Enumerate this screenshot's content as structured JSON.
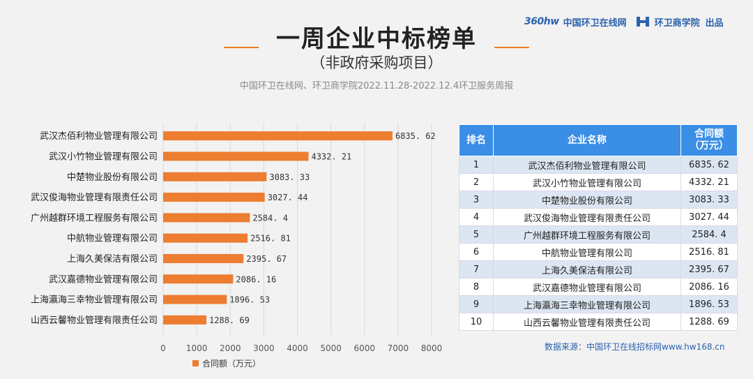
{
  "brand": {
    "logo": "360hw",
    "site": "中国环卫在线网",
    "academy": "环卫商学院",
    "publish": "出品"
  },
  "header": {
    "title": "一周企业中标榜单",
    "subtitle": "（非政府采购项目）",
    "source": "中国环卫在线网、环卫商学院2022.11.28-2022.12.4环卫服务周报"
  },
  "colors": {
    "bar": "#ed7d31",
    "table_header": "#3a8ee6",
    "row_odd": "#dce6f3"
  },
  "chart_data": {
    "type": "bar",
    "orientation": "horizontal",
    "categories": [
      "武汉杰佰利物业管理有限公司",
      "武汉小竹物业管理有限公司",
      "中楚物业股份有限公司",
      "武汉俊海物业管理有限责任公司",
      "广州越群环境工程服务有限公司",
      "中航物业管理有限公司",
      "上海久美保洁有限公司",
      "武汉嘉德物业管理有限公司",
      "上海瀛海三幸物业管理有限公司",
      "山西云馨物业管理有限责任公司"
    ],
    "values": [
      6835.62,
      4332.21,
      3083.33,
      3027.44,
      2584.4,
      2516.81,
      2395.67,
      2086.16,
      1896.53,
      1288.69
    ],
    "value_labels": [
      "6835. 62",
      "4332. 21",
      "3083. 33",
      "3027. 44",
      "2584. 4",
      "2516. 81",
      "2395. 67",
      "2086. 16",
      "1896. 53",
      "1288. 69"
    ],
    "xlim": [
      0,
      8000
    ],
    "ticks": [
      0,
      1000,
      2000,
      3000,
      4000,
      5000,
      6000,
      7000,
      8000
    ],
    "series_name": "合同额（万元）",
    "grid": true,
    "legend": "bottom"
  },
  "table": {
    "headers": [
      "排名",
      "企业名称",
      "合同额\n（万元）"
    ],
    "rows": [
      [
        "1",
        "武汉杰佰利物业管理有限公司",
        "6835. 62"
      ],
      [
        "2",
        "武汉小竹物业管理有限公司",
        "4332. 21"
      ],
      [
        "3",
        "中楚物业股份有限公司",
        "3083. 33"
      ],
      [
        "4",
        "武汉俊海物业管理有限责任公司",
        "3027. 44"
      ],
      [
        "5",
        "广州越群环境工程服务有限公司",
        "2584. 4"
      ],
      [
        "6",
        "中航物业管理有限公司",
        "2516. 81"
      ],
      [
        "7",
        "上海久美保洁有限公司",
        "2395. 67"
      ],
      [
        "8",
        "武汉嘉德物业管理有限公司",
        "2086. 16"
      ],
      [
        "9",
        "上海瀛海三幸物业管理有限公司",
        "1896. 53"
      ],
      [
        "10",
        "山西云馨物业管理有限责任公司",
        "1288. 69"
      ]
    ]
  },
  "footer": {
    "source": "数据来源：中国环卫在线招标网www.hw168.cn"
  }
}
